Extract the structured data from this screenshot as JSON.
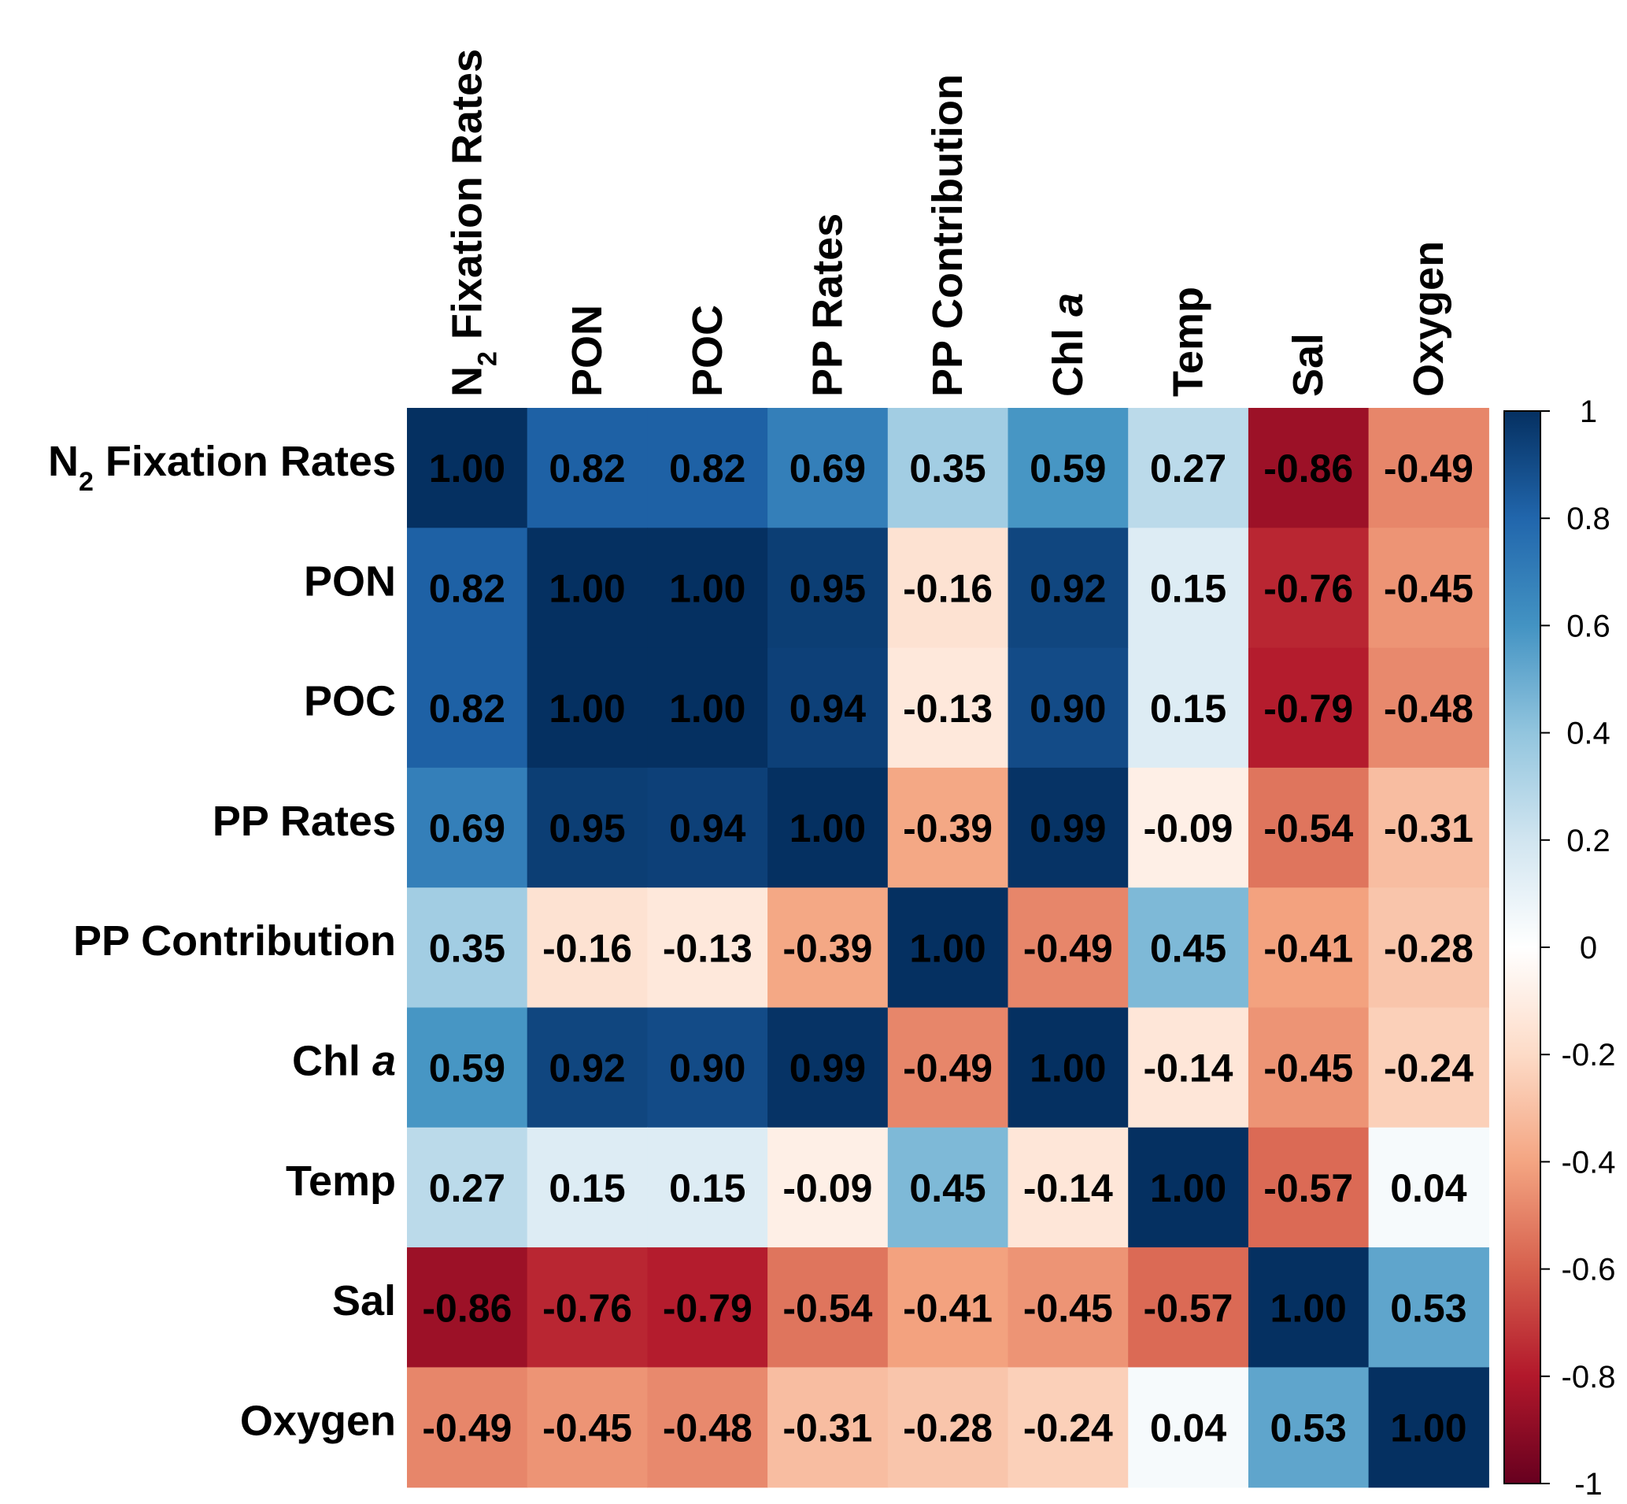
{
  "chart_data": {
    "type": "heatmap",
    "variables": [
      {
        "base": "N",
        "sub": "2",
        "rest": " Fixation Rates",
        "italic": ""
      },
      {
        "base": "PON",
        "sub": "",
        "rest": "",
        "italic": ""
      },
      {
        "base": "POC",
        "sub": "",
        "rest": "",
        "italic": ""
      },
      {
        "base": "PP Rates",
        "sub": "",
        "rest": "",
        "italic": ""
      },
      {
        "base": "PP Contribution",
        "sub": "",
        "rest": "",
        "italic": ""
      },
      {
        "base": "Chl ",
        "sub": "",
        "rest": "",
        "italic": "a"
      },
      {
        "base": "Temp",
        "sub": "",
        "rest": "",
        "italic": ""
      },
      {
        "base": "Sal",
        "sub": "",
        "rest": "",
        "italic": ""
      },
      {
        "base": "Oxygen",
        "sub": "",
        "rest": "",
        "italic": ""
      }
    ],
    "matrix": [
      [
        1.0,
        0.82,
        0.82,
        0.69,
        0.35,
        0.59,
        0.27,
        -0.86,
        -0.49
      ],
      [
        0.82,
        1.0,
        1.0,
        0.95,
        -0.16,
        0.92,
        0.15,
        -0.76,
        -0.45
      ],
      [
        0.82,
        1.0,
        1.0,
        0.94,
        -0.13,
        0.9,
        0.15,
        -0.79,
        -0.48
      ],
      [
        0.69,
        0.95,
        0.94,
        1.0,
        -0.39,
        0.99,
        -0.09,
        -0.54,
        -0.31
      ],
      [
        0.35,
        -0.16,
        -0.13,
        -0.39,
        1.0,
        -0.49,
        0.45,
        -0.41,
        -0.28
      ],
      [
        0.59,
        0.92,
        0.9,
        0.99,
        -0.49,
        1.0,
        -0.14,
        -0.45,
        -0.24
      ],
      [
        0.27,
        0.15,
        0.15,
        -0.09,
        0.45,
        -0.14,
        1.0,
        -0.57,
        0.04
      ],
      [
        -0.86,
        -0.76,
        -0.79,
        -0.54,
        -0.41,
        -0.45,
        -0.57,
        1.0,
        0.53
      ],
      [
        -0.49,
        -0.45,
        -0.48,
        -0.31,
        -0.28,
        -0.24,
        0.04,
        0.53,
        1.0
      ]
    ],
    "colorbar": {
      "range": [
        -1,
        1
      ],
      "ticks": [
        1,
        0.8,
        0.6,
        0.4,
        0.2,
        0,
        -0.2,
        -0.4,
        -0.6,
        -0.8,
        -1
      ],
      "tick_labels": [
        "1",
        "0.8",
        "0.6",
        "0.4",
        "0.2",
        "0",
        "-0.2",
        "-0.4",
        "-0.6",
        "-0.8",
        "-1"
      ]
    },
    "palette": {
      "stops": [
        -1,
        -0.8,
        -0.6,
        -0.4,
        -0.2,
        0,
        0.2,
        0.4,
        0.6,
        0.8,
        1
      ],
      "colors": [
        "#67001f",
        "#b2182b",
        "#d6604d",
        "#f4a582",
        "#fddbc7",
        "#ffffff",
        "#d1e5f0",
        "#92c5de",
        "#4393c3",
        "#2166ac",
        "#053061"
      ]
    }
  }
}
